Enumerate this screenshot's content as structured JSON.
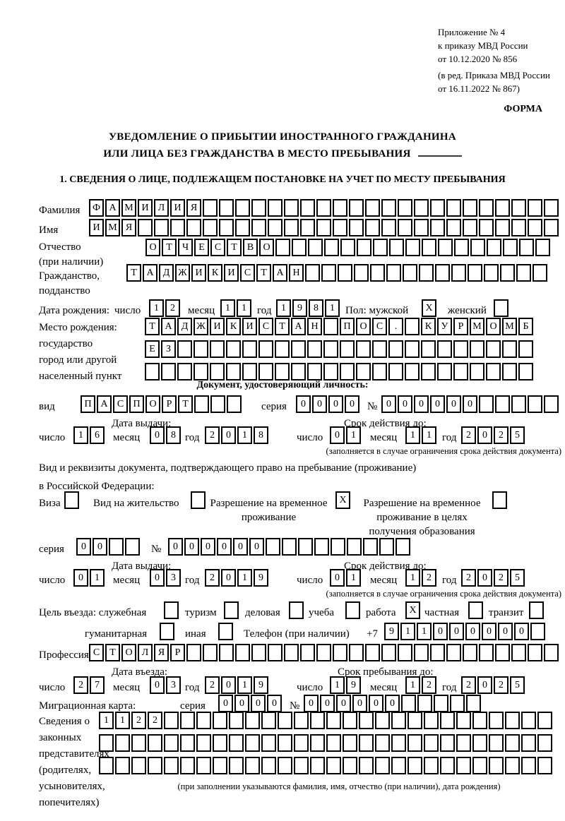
{
  "header": {
    "appendix_lines": [
      "Приложение № 4",
      "к приказу МВД России",
      "от 10.12.2020 № 856"
    ],
    "revision_lines": [
      "(в ред. Приказа МВД России",
      "от 16.11.2022 № 867)"
    ],
    "form_label": "ФОРМА"
  },
  "title": {
    "line1": "УВЕДОМЛЕНИЕ О ПРИБЫТИИ ИНОСТРАННОГО ГРАЖДАНИНА",
    "line2": "ИЛИ ЛИЦА БЕЗ ГРАЖДАНСТВА В МЕСТО ПРЕБЫВАНИЯ"
  },
  "section1_heading": "1. СВЕДЕНИЯ О ЛИЦЕ, ПОДЛЕЖАЩЕМ ПОСТАНОВКЕ НА УЧЕТ ПО МЕСТУ ПРЕБЫВАНИЯ",
  "labels": {
    "surname": "Фамилия",
    "given_name": "Имя",
    "patronymic": "Отчество",
    "patronymic_note": "(при наличии)",
    "citizenship1": "Гражданство,",
    "citizenship2": "подданство",
    "birth_date": "Дата рождения:",
    "day": "число",
    "month": "месяц",
    "year": "год",
    "sex_male": "Пол: мужской",
    "sex_female": "женский",
    "birthplace1": "Место рождения:",
    "birthplace2": "государство",
    "birthplace3": "город или другой",
    "birthplace4": "населенный пункт",
    "id_doc_heading": "Документ, удостоверяющий личность:",
    "doc_kind": "вид",
    "series": "серия",
    "number": "№",
    "issue_date": "Дата выдачи:",
    "valid_until": "Срок действия до:",
    "restriction_note": "(заполняется в случае ограничения срока действия документа)",
    "residence_doc_line1": "Вид и реквизиты документа, подтверждающего право на пребывание (проживание)",
    "residence_doc_line2": "в Российской Федерации:",
    "visa": "Виза",
    "residence_permit": "Вид на жительство",
    "temp_permit_line1": "Разрешение на временное",
    "temp_permit_line2": "проживание",
    "temp_permit_edu_line1": "Разрешение на временное",
    "temp_permit_edu_line2": "проживание в целях",
    "temp_permit_edu_line3": "получения образования",
    "purpose": "Цель въезда: служебная",
    "tourism": "туризм",
    "business": "деловая",
    "study": "учеба",
    "work": "работа",
    "private": "частная",
    "transit": "транзит",
    "humanitarian": "гуманитарная",
    "other": "иная",
    "phone": "Телефон (при наличии)",
    "phone_prefix": "+7",
    "profession": "Профессия",
    "entry_date": "Дата въезда:",
    "stay_until": "Срок пребывания до:",
    "migration_card": "Миграционная карта:",
    "legal_reps_line1": "Сведения о",
    "legal_reps_line2": "законных",
    "legal_reps_line3": "представителях",
    "legal_reps_line4": "(родителях,",
    "legal_reps_line5": "усыновителях,",
    "legal_reps_line6": "попечителях)",
    "legal_reps_note": "(при заполнении указываются фамилия, имя, отчество (при наличии), дата рождения)"
  },
  "fields": {
    "surname": {
      "value": "ФАМИЛИЯ",
      "total": 29
    },
    "given_name": {
      "value": "ИМЯ",
      "total": 29
    },
    "patronymic": {
      "value": "ОТЧЕСТВО",
      "total": 25
    },
    "citizenship": {
      "value": "ТАДЖИКИСТАН",
      "total": 26
    },
    "birth_day": {
      "value": "12",
      "total": 2
    },
    "birth_month": {
      "value": "11",
      "total": 2
    },
    "birth_year": {
      "value": "1981",
      "total": 4
    },
    "sex_male": {
      "value": "X",
      "total": 1
    },
    "sex_female": {
      "value": "",
      "total": 1
    },
    "birthplace_row1": {
      "value": "ТАДЖИКИСТАН ПОС. КУРМОМБ",
      "total": 24
    },
    "birthplace_row2": {
      "value": "ЕЗ",
      "total": 24
    },
    "birthplace_row3": {
      "value": "",
      "total": 24
    },
    "id_type": {
      "value": "ПАСПОРТ",
      "total": 10
    },
    "id_series": {
      "value": "0000",
      "total": 4
    },
    "id_number": {
      "value": "000000",
      "total": 11
    },
    "id_issue_day": {
      "value": "16",
      "total": 2
    },
    "id_issue_month": {
      "value": "08",
      "total": 2
    },
    "id_issue_year": {
      "value": "2018",
      "total": 4
    },
    "id_valid_day": {
      "value": "01",
      "total": 2
    },
    "id_valid_month": {
      "value": "11",
      "total": 2
    },
    "id_valid_year": {
      "value": "2025",
      "total": 4
    },
    "cb_visa": {
      "value": "",
      "total": 1
    },
    "cb_residence_permit": {
      "value": "",
      "total": 1
    },
    "cb_temp_permit": {
      "value": "X",
      "total": 1
    },
    "cb_temp_permit_edu": {
      "value": "",
      "total": 1
    },
    "permit_series": {
      "value": "00",
      "total": 4
    },
    "permit_number": {
      "value": "000000",
      "total": 15
    },
    "permit_issue_day": {
      "value": "01",
      "total": 2
    },
    "permit_issue_month": {
      "value": "03",
      "total": 2
    },
    "permit_issue_year": {
      "value": "2019",
      "total": 4
    },
    "permit_valid_day": {
      "value": "01",
      "total": 2
    },
    "permit_valid_month": {
      "value": "12",
      "total": 2
    },
    "permit_valid_year": {
      "value": "2025",
      "total": 4
    },
    "cb_official": {
      "value": "",
      "total": 1
    },
    "cb_tourism": {
      "value": "",
      "total": 1
    },
    "cb_business": {
      "value": "",
      "total": 1
    },
    "cb_study": {
      "value": "",
      "total": 1
    },
    "cb_work": {
      "value": "X",
      "total": 1
    },
    "cb_private": {
      "value": "",
      "total": 1
    },
    "cb_transit": {
      "value": "",
      "total": 1
    },
    "cb_humanitarian": {
      "value": "",
      "total": 1
    },
    "cb_other": {
      "value": "",
      "total": 1
    },
    "phone_number": {
      "value": "911000000",
      "total": 10
    },
    "profession": {
      "value": "СТОЛЯР",
      "total": 29
    },
    "entry_day": {
      "value": "27",
      "total": 2
    },
    "entry_month": {
      "value": "03",
      "total": 2
    },
    "entry_year": {
      "value": "2019",
      "total": 4
    },
    "stay_day": {
      "value": "19",
      "total": 2
    },
    "stay_month": {
      "value": "12",
      "total": 2
    },
    "stay_year": {
      "value": "2025",
      "total": 4
    },
    "mc_series": {
      "value": "0000",
      "total": 4
    },
    "mc_number": {
      "value": "000000",
      "total": 11
    },
    "legal_row1": {
      "value": "1122",
      "total": 28
    },
    "legal_row2": {
      "value": "",
      "total": 28
    },
    "legal_row3": {
      "value": "",
      "total": 28
    }
  }
}
